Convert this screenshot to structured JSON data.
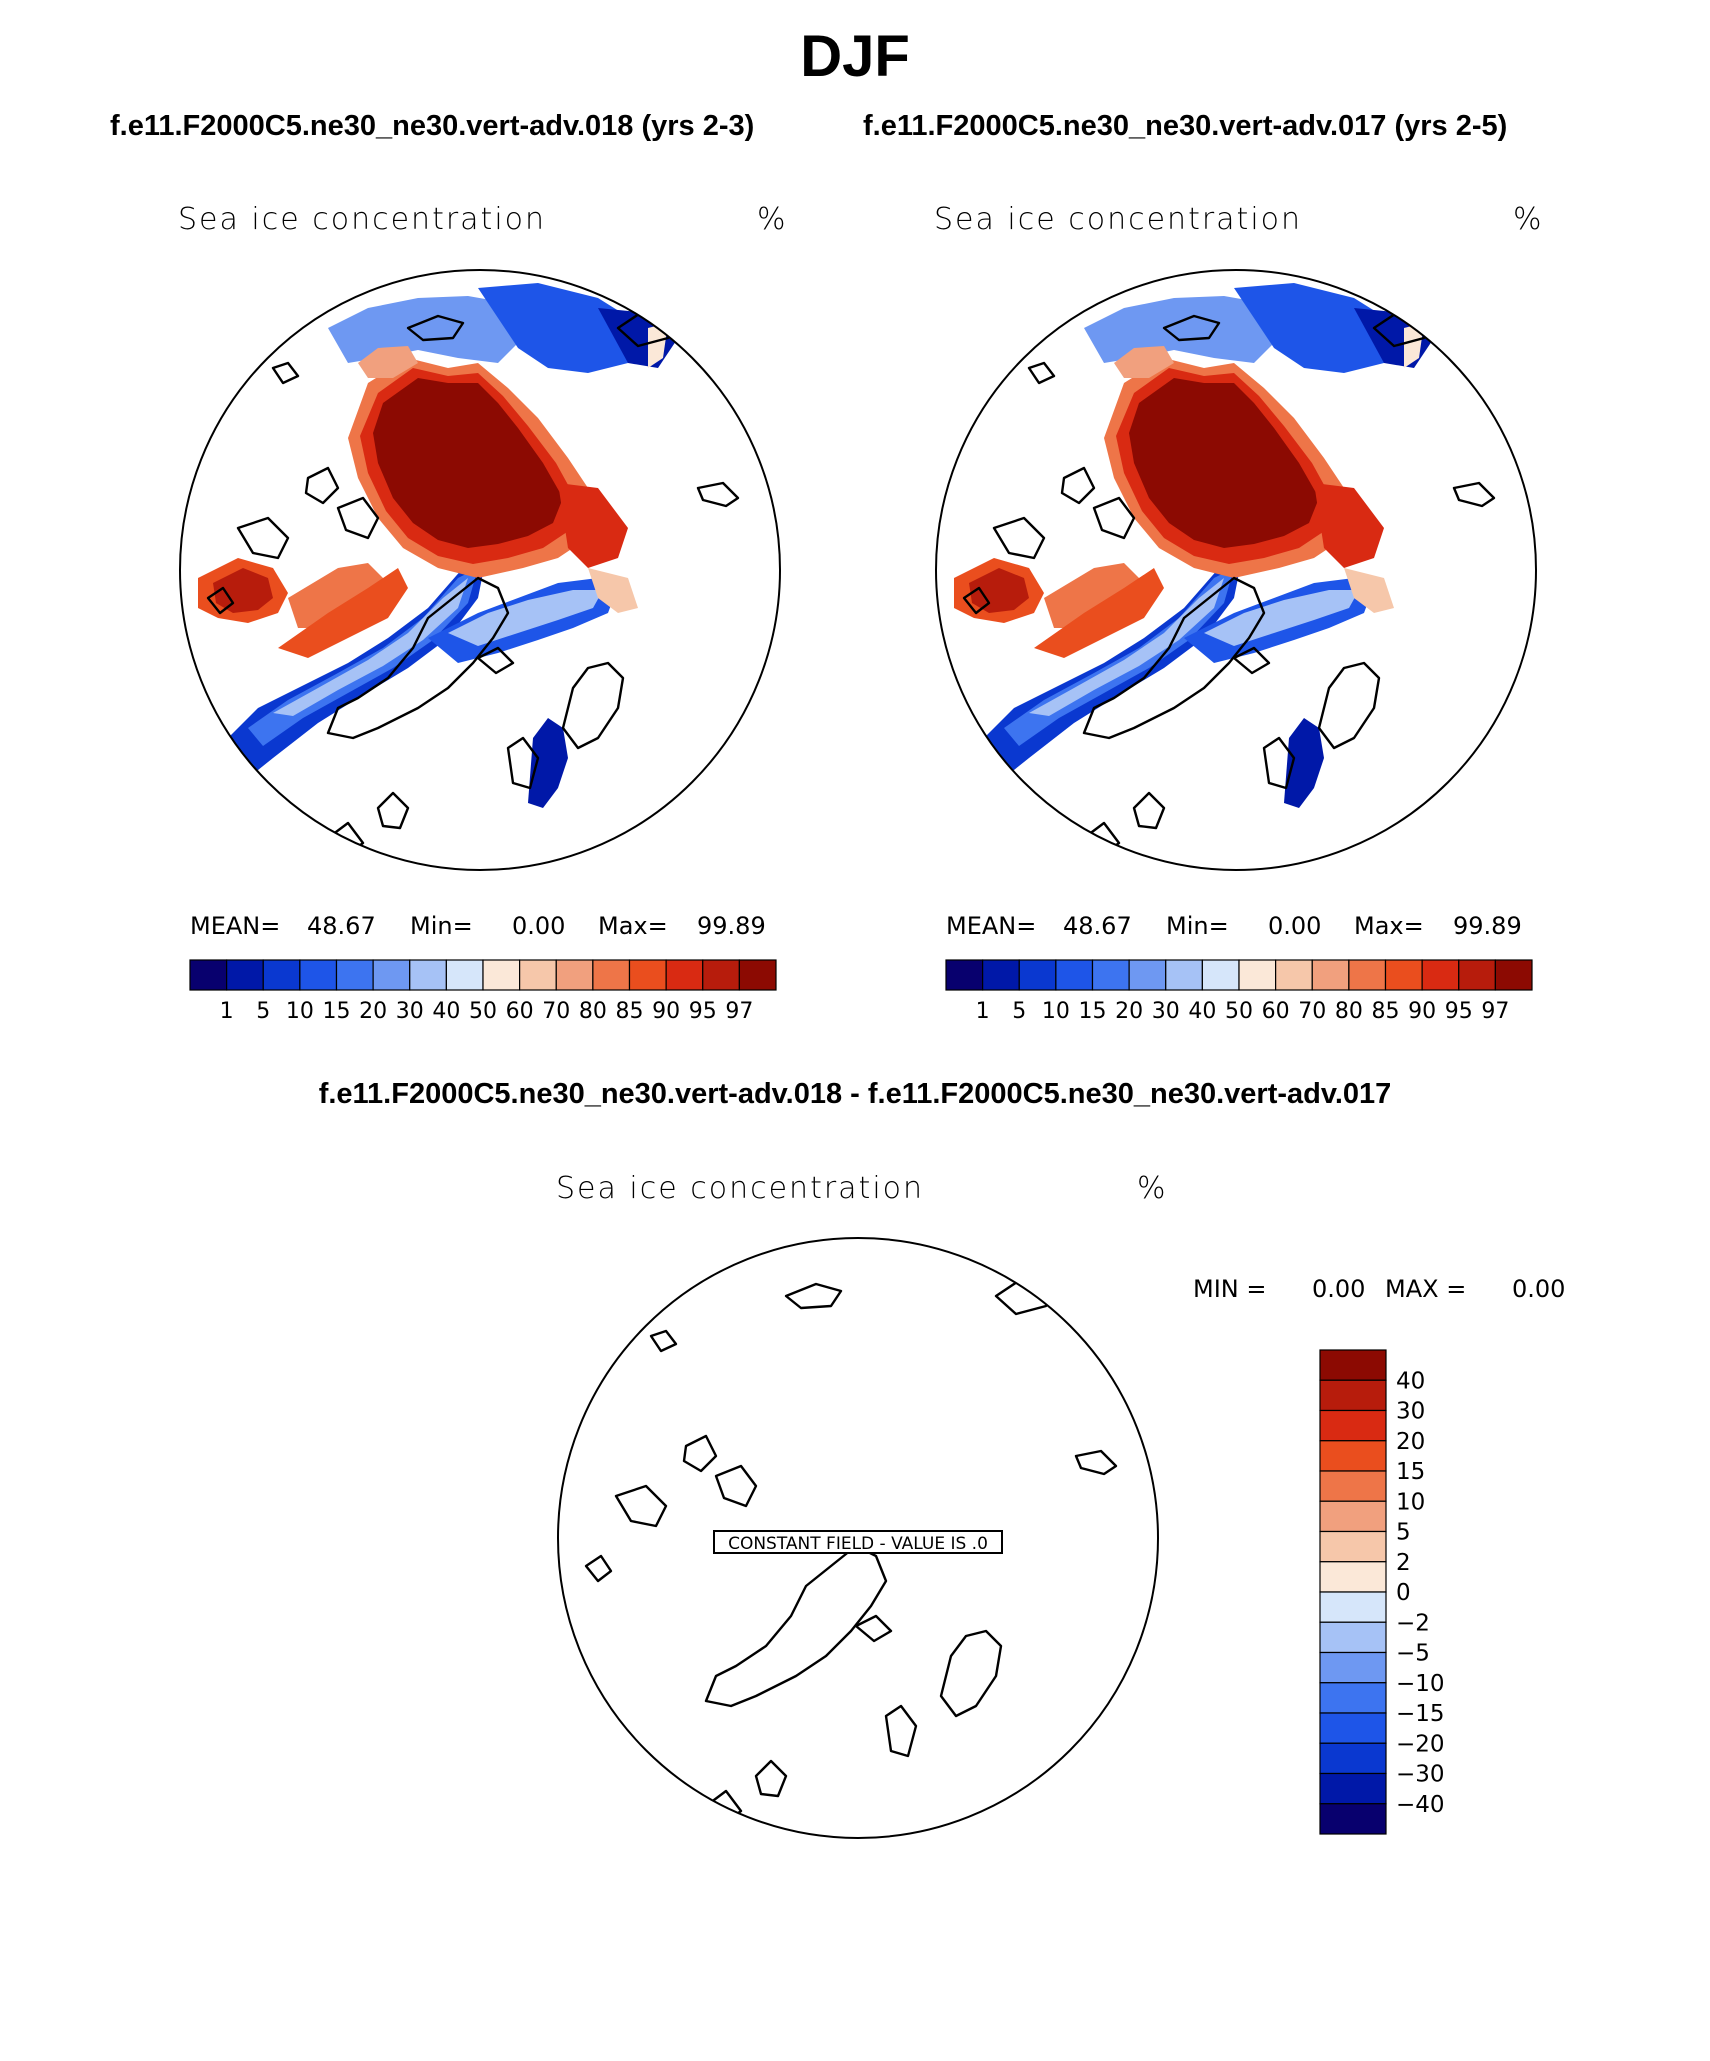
{
  "title": "DJF",
  "subtitle_left": "f.e11.F2000C5.ne30_ne30.vert-adv.018 (yrs 2-3)",
  "subtitle_right": "f.e11.F2000C5.ne30_ne30.vert-adv.017 (yrs 2-5)",
  "diff_title": "f.e11.F2000C5.ne30_ne30.vert-adv.018 - f.e11.F2000C5.ne30_ne30.vert-adv.017",
  "colors": {
    "abs_scale": [
      "#08006e",
      "#0018a8",
      "#0a38d0",
      "#1e55e8",
      "#3d74f0",
      "#6e98f2",
      "#a6c2f6",
      "#d6e6fa",
      "#fbe8d8",
      "#f6c7aa",
      "#f1a07e",
      "#ee7548",
      "#ea4e1e",
      "#d92a12",
      "#b71c0c",
      "#8c0a02"
    ],
    "diff_scale": [
      "#08006e",
      "#0018a8",
      "#0a38d0",
      "#1e55e8",
      "#3d74f0",
      "#6e98f2",
      "#a6c2f6",
      "#d6e6fa",
      "#fbe8d8",
      "#f6c7aa",
      "#f1a07e",
      "#ee7548",
      "#ea4e1e",
      "#d92a12",
      "#b71c0c",
      "#8c0a02"
    ]
  },
  "chart_data": [
    {
      "type": "heatmap",
      "projection": "north polar stereographic",
      "panel": "left",
      "title": "f.e11.F2000C5.ne30_ne30.vert-adv.018 (yrs 2-3)",
      "label_left": "Sea ice concentration",
      "label_right": "%",
      "stats": {
        "mean_label": "MEAN=",
        "mean": "48.67",
        "min_label": "Min=",
        "min": "0.00",
        "max_label": "Max=",
        "max": "99.89"
      },
      "colorbar_levels": [
        "1",
        "5",
        "10",
        "15",
        "20",
        "30",
        "40",
        "50",
        "60",
        "70",
        "80",
        "85",
        "90",
        "95",
        "97"
      ]
    },
    {
      "type": "heatmap",
      "projection": "north polar stereographic",
      "panel": "right",
      "title": "f.e11.F2000C5.ne30_ne30.vert-adv.017 (yrs 2-5)",
      "label_left": "Sea ice concentration",
      "label_right": "%",
      "stats": {
        "mean_label": "MEAN=",
        "mean": "48.67",
        "min_label": "Min=",
        "min": "0.00",
        "max_label": "Max=",
        "max": "99.89"
      },
      "colorbar_levels": [
        "1",
        "5",
        "10",
        "15",
        "20",
        "30",
        "40",
        "50",
        "60",
        "70",
        "80",
        "85",
        "90",
        "95",
        "97"
      ]
    },
    {
      "type": "heatmap",
      "projection": "north polar stereographic",
      "panel": "difference",
      "title": "f.e11.F2000C5.ne30_ne30.vert-adv.018 - f.e11.F2000C5.ne30_ne30.vert-adv.017",
      "label_left": "Sea ice concentration",
      "label_right": "%",
      "stats": {
        "min_label": "MIN =",
        "min": "0.00",
        "max_label": "MAX =",
        "max": "0.00"
      },
      "constant_field_label": "CONSTANT FIELD - VALUE IS .0",
      "colorbar_levels": [
        "40",
        "30",
        "20",
        "15",
        "10",
        "5",
        "2",
        "0",
        "−2",
        "−5",
        "−10",
        "−15",
        "−20",
        "−30",
        "−40"
      ]
    }
  ]
}
